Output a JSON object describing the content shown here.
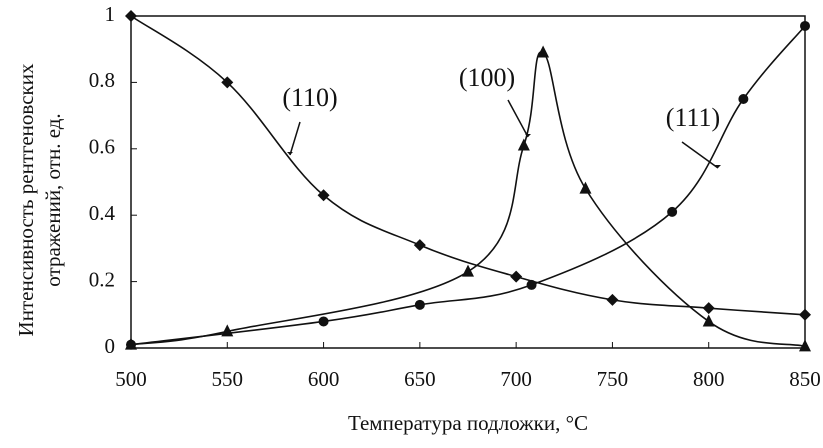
{
  "chart_data": {
    "type": "line",
    "xlabel": "Температура подложки, °C",
    "ylabel": [
      "Интенсивность рентгеновских",
      "отражений, отн. ед."
    ],
    "xlim": [
      500,
      850
    ],
    "xticks": [
      500,
      550,
      600,
      650,
      700,
      750,
      800,
      850
    ],
    "ylim": [
      0,
      1
    ],
    "yticks": [
      0,
      0.2,
      0.4,
      0.6,
      0.8,
      1
    ],
    "grid": false,
    "series": [
      {
        "name": "(110)",
        "color": "#111111",
        "marker": "diamond",
        "x": [
          500,
          550,
          600,
          650,
          700,
          750,
          800,
          850
        ],
        "values": [
          1,
          0.8,
          0.46,
          0.31,
          0.215,
          0.145,
          0.12,
          0.1
        ]
      },
      {
        "name": "(100)",
        "color": "#111111",
        "marker": "triangle",
        "x": [
          500,
          550,
          675,
          704,
          714,
          736,
          800,
          850
        ],
        "values": [
          0.01,
          0.05,
          0.23,
          0.61,
          0.89,
          0.48,
          0.08,
          0.005
        ]
      },
      {
        "name": "(111)",
        "color": "#111111",
        "marker": "circle",
        "x": [
          500,
          600,
          650,
          708,
          781,
          818,
          850
        ],
        "values": [
          0.01,
          0.08,
          0.13,
          0.19,
          0.41,
          0.75,
          0.97
        ]
      }
    ]
  }
}
